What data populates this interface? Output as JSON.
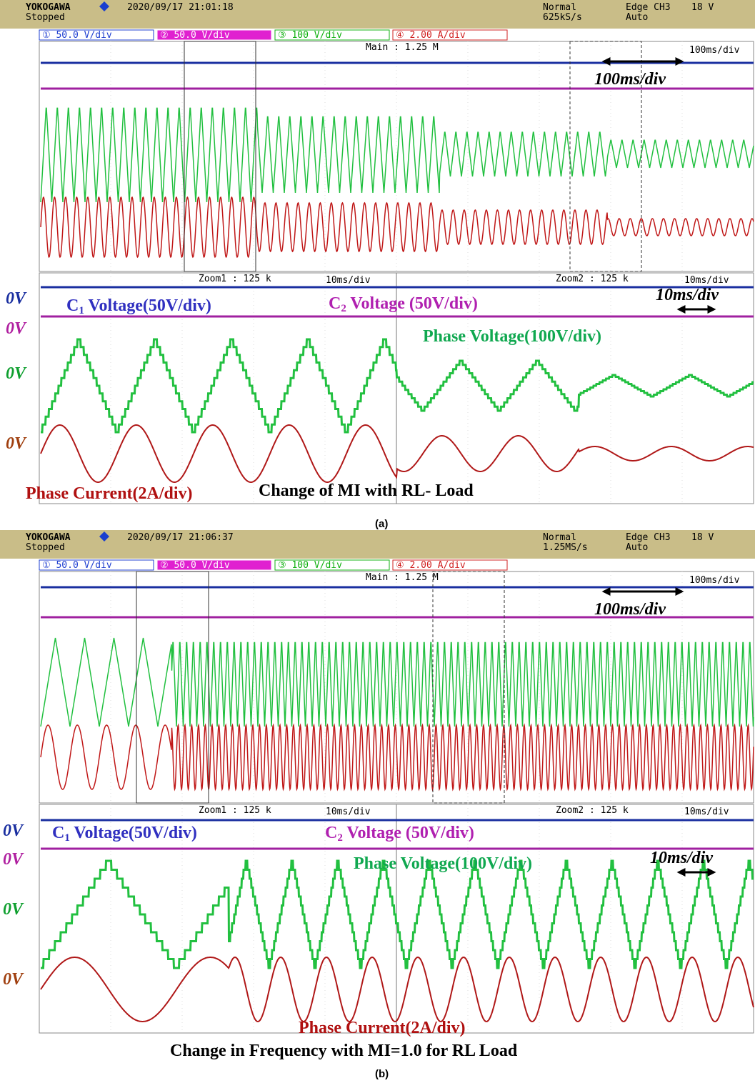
{
  "panels": [
    {
      "header": {
        "brand": "YOKOGAWA",
        "status": "Stopped",
        "timestamp": "2020/09/17 21:01:18",
        "mode": "Normal",
        "rate": "625kS/s",
        "trigger": "Edge CH3",
        "level": "18 V",
        "trigger_mode": "Auto"
      },
      "channels": [
        "① 50.0 V/div",
        "② 50.0 V/div",
        "③ 100 V/div",
        "④ 2.00 A/div"
      ],
      "main": {
        "label": "Main : 1.25 M",
        "timebase": "100ms/div",
        "annotation": "100ms/div"
      },
      "zoom": {
        "zoom1": "Zoom1 : 125 k",
        "zoom1_timebase": "10ms/div",
        "zoom2": "Zoom2 : 125 k",
        "zoom2_timebase": "10ms/div",
        "annotation": "10ms/div"
      },
      "labels": {
        "zero": [
          "0V",
          "0V",
          "0V",
          "0V"
        ],
        "c1": {
          "name": "C",
          "sub": "1",
          "rest": " Voltage(50V/div)"
        },
        "c2": {
          "name": "C",
          "sub": "2",
          "rest": " Voltage (50V/div)"
        },
        "phase_voltage": "Phase Voltage(100V/div)",
        "phase_current": "Phase Current(2A/div)",
        "title": "Change of MI with RL- Load"
      },
      "caption": "(a)"
    },
    {
      "header": {
        "brand": "YOKOGAWA",
        "status": "Stopped",
        "timestamp": "2020/09/17 21:06:37",
        "mode": "Normal",
        "rate": "1.25MS/s",
        "trigger": "Edge CH3",
        "level": "18 V",
        "trigger_mode": "Auto"
      },
      "channels": [
        "① 50.0 V/div",
        "② 50.0 V/div",
        "③ 100 V/div",
        "④ 2.00 A/div"
      ],
      "main": {
        "label": "Main : 1.25 M",
        "timebase": "100ms/div",
        "annotation": "100ms/div"
      },
      "zoom": {
        "zoom1": "Zoom1 : 125 k",
        "zoom1_timebase": "10ms/div",
        "zoom2": "Zoom2 : 125 k",
        "zoom2_timebase": "10ms/div",
        "annotation": "10ms/div"
      },
      "labels": {
        "zero": [
          "0V",
          "0V",
          "0V",
          "0V"
        ],
        "c1": {
          "name": "C",
          "sub": "1",
          "rest": " Voltage(50V/div)"
        },
        "c2": {
          "name": "C",
          "sub": "2",
          "rest": " Voltage (50V/div)"
        },
        "phase_voltage": "Phase Voltage(100V/div)",
        "phase_current": "Phase Current(2A/div)",
        "title": "Change in Frequency with MI=1.0 for RL Load"
      },
      "caption": "(b)"
    }
  ]
}
